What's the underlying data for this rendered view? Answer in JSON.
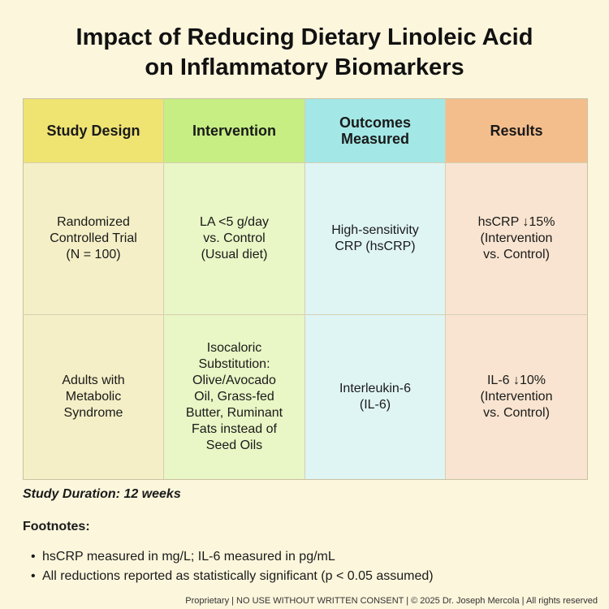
{
  "title": {
    "line1": "Impact of Reducing Dietary Linoleic Acid",
    "line2": "on Inflammatory Biomarkers"
  },
  "table": {
    "headers": [
      "Study Design",
      "Intervention",
      "Outcomes\nMeasured",
      "Results"
    ],
    "rows": [
      [
        "Randomized\nControlled Trial\n(N = 100)",
        "LA <5 g/day\nvs. Control\n(Usual diet)",
        "High-sensitivity\nCRP (hsCRP)",
        "hsCRP ↓15%\n(Intervention\nvs. Control)"
      ],
      [
        "Adults with\nMetabolic\nSyndrome",
        "Isocaloric\nSubstitution:\nOlive/Avocado\nOil, Grass-fed\nButter, Ruminant\nFats instead of\nSeed Oils",
        "Interleukin-6\n(IL-6)",
        "IL-6 ↓10%\n(Intervention\nvs. Control)"
      ]
    ]
  },
  "duration": "Study Duration: 12 weeks",
  "footnotes": {
    "title": "Footnotes:",
    "bullet": "•",
    "items": [
      "hsCRP measured in mg/L; IL-6 measured in pg/mL",
      "All reductions reported as statistically significant (p < 0.05 assumed)"
    ]
  },
  "footer": "Proprietary | NO USE WITHOUT WRITTEN CONSENT | © 2025 Dr. Joseph Mercola | All rights reserved",
  "colors": {
    "background": "#fbf6dc",
    "header_study_design": "#efe372",
    "header_intervention": "#c6ee82",
    "header_outcomes": "#a3e8e6",
    "header_results": "#f4be8c"
  }
}
